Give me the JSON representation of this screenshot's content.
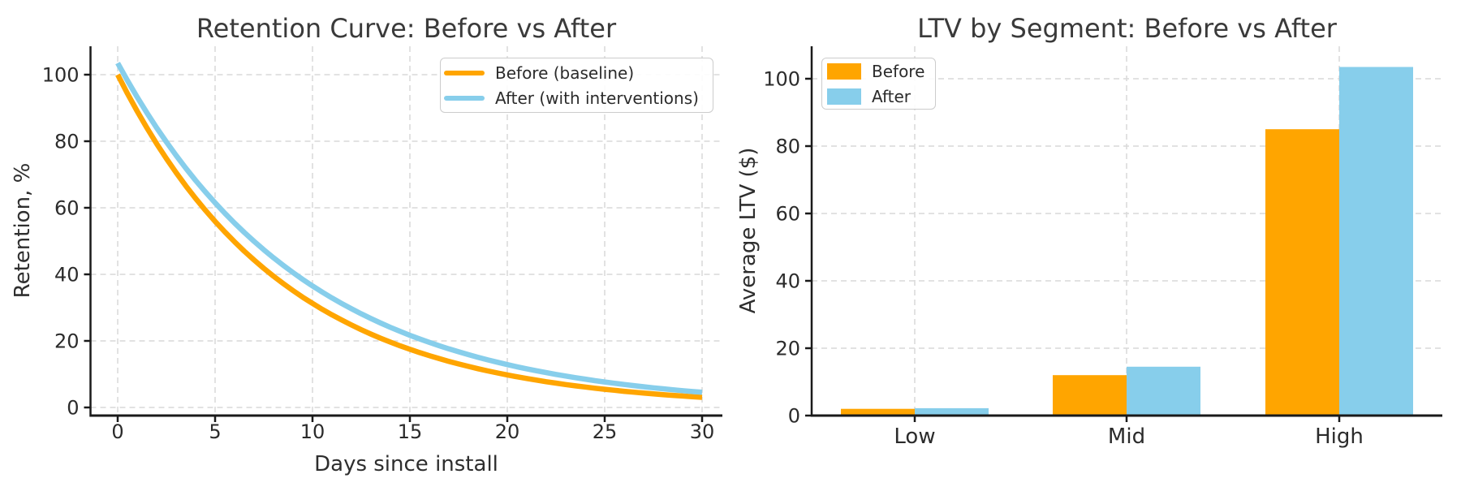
{
  "figure": {
    "background": "#ffffff",
    "text_color": "#2e2e2e",
    "title_color": "#3a3a3a",
    "grid_color": "#d9d9d9",
    "spine_color": "#1a1a1a",
    "accent_orange": "#FFA500",
    "accent_blue": "#87CEEB"
  },
  "chart_data": [
    {
      "type": "line",
      "title": "Retention Curve: Before vs After",
      "xlabel": "Days since install",
      "ylabel": "Retention, %",
      "xticks": [
        0,
        5,
        10,
        15,
        20,
        25,
        30
      ],
      "yticks": [
        0,
        20,
        40,
        60,
        80,
        100
      ],
      "xlim": [
        -1.4,
        31.5
      ],
      "ylim": [
        -2.4,
        108.5
      ],
      "grid": "dashed",
      "legend_position": "upper right",
      "x": [
        0,
        0.5,
        1,
        1.5,
        2,
        2.5,
        3,
        3.5,
        4,
        4.5,
        5,
        5.5,
        6,
        6.5,
        7,
        7.5,
        8,
        8.5,
        9,
        9.5,
        10,
        10.5,
        11,
        11.5,
        12,
        12.5,
        13,
        13.5,
        14,
        14.5,
        15,
        15.5,
        16,
        16.5,
        17,
        17.5,
        18,
        18.5,
        19,
        19.5,
        20,
        20.5,
        21,
        21.5,
        22,
        22.5,
        23,
        23.5,
        24,
        24.5,
        25,
        25.5,
        26,
        26.5,
        27,
        27.5,
        28,
        28.5,
        29,
        29.5,
        30
      ],
      "series": [
        {
          "name": "Before (baseline)",
          "color": "#FFA500",
          "y": [
            100,
            94.35,
            89.02,
            84.0,
            79.25,
            74.77,
            70.55,
            66.57,
            62.81,
            59.26,
            55.91,
            52.75,
            49.77,
            46.96,
            44.31,
            41.81,
            39.44,
            37.22,
            35.11,
            33.13,
            31.26,
            29.49,
            27.83,
            26.26,
            24.77,
            23.37,
            22.05,
            20.81,
            19.63,
            18.52,
            17.48,
            16.49,
            15.56,
            14.68,
            13.85,
            13.07,
            12.33,
            11.63,
            10.98,
            10.36,
            9.77,
            9.22,
            8.7,
            8.21,
            7.74,
            7.31,
            6.89,
            6.5,
            6.14,
            5.79,
            5.46,
            5.16,
            4.86,
            4.59,
            4.33,
            4.09,
            3.85,
            3.64,
            3.43,
            3.24,
            3.05
          ]
        },
        {
          "name": "After (with interventions)",
          "color": "#87CEEB",
          "y": [
            103.5,
            98.25,
            93.26,
            88.53,
            84.03,
            79.77,
            75.72,
            71.88,
            68.23,
            64.77,
            61.48,
            58.36,
            55.4,
            52.59,
            49.92,
            47.39,
            44.98,
            42.7,
            40.53,
            38.47,
            36.52,
            34.67,
            32.91,
            31.24,
            29.65,
            28.15,
            26.72,
            25.36,
            24.08,
            22.85,
            21.69,
            20.59,
            19.55,
            18.56,
            17.61,
            16.72,
            15.87,
            15.07,
            14.3,
            13.58,
            12.89,
            12.23,
            11.61,
            11.02,
            10.46,
            9.93,
            9.43,
            8.95,
            8.5,
            8.06,
            7.66,
            7.27,
            6.9,
            6.55,
            6.22,
            5.9,
            5.6,
            5.32,
            5.05,
            4.79,
            4.55
          ]
        }
      ]
    },
    {
      "type": "bar",
      "title": "LTV by Segment: Before vs After",
      "xlabel": "",
      "ylabel": "Average LTV ($)",
      "categories": [
        "Low",
        "Mid",
        "High"
      ],
      "yticks": [
        0,
        20,
        40,
        60,
        80,
        100
      ],
      "ylim": [
        0,
        109.5
      ],
      "grid": "dashed",
      "legend_position": "upper left",
      "series": [
        {
          "name": "Before",
          "color": "#FFA500",
          "values": [
            2.0,
            12.0,
            85.0
          ]
        },
        {
          "name": "After",
          "color": "#87CEEB",
          "values": [
            2.2,
            14.5,
            103.5
          ]
        }
      ]
    }
  ]
}
